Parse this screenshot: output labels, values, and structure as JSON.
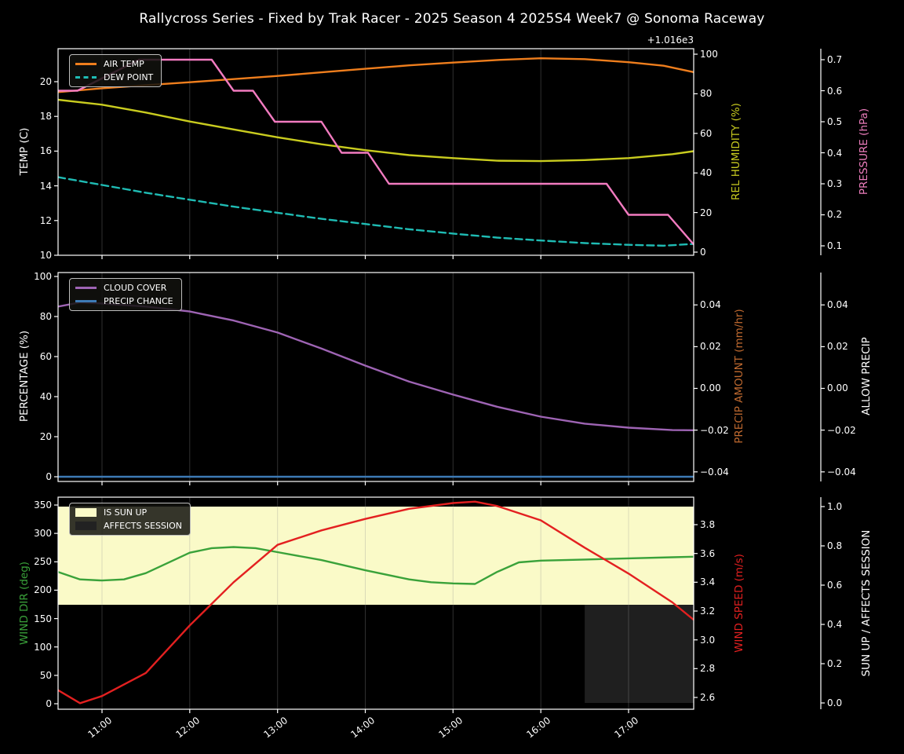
{
  "title": "Rallycross Series - Fixed by Trak Racer - 2025 Season 4 2025S4 Week7 @ Sonoma Raceway",
  "x_axis": {
    "tick_hours": [
      11,
      12,
      13,
      14,
      15,
      16,
      17
    ],
    "tick_labels": [
      "11:00",
      "12:00",
      "13:00",
      "14:00",
      "15:00",
      "16:00",
      "17:00"
    ],
    "range_hours": [
      10.5,
      17.74
    ]
  },
  "colors": {
    "background": "#000000",
    "frame": "#ffffff",
    "grid": "rgba(150,150,150,0.32)",
    "air_temp": "#ef7e1d",
    "dew_point": "#1fbcb4",
    "rel_humidity": "#c9cc1f",
    "pressure": "#f27bc0",
    "cloud_cover": "#9e64b4",
    "precip_chance": "#3d7ab5",
    "precip_amount_label": "#c06a30",
    "wind_dir": "#3aa23a",
    "wind_speed": "#e32020",
    "sun_up_fill": "#fafac8",
    "affects_session_fill": "#1f1f1f"
  },
  "chart_data": [
    {
      "type": "line",
      "panel": "temperature-humidity-pressure",
      "axes": {
        "left": {
          "label": "TEMP (C)",
          "color": "#ffffff",
          "tick_values": [
            10,
            12,
            14,
            16,
            18,
            20
          ],
          "tick_labels": [
            "10",
            "12",
            "14",
            "16",
            "18",
            "20"
          ]
        },
        "right1": {
          "label": "REL HUMIDITY (%)",
          "color": "#c9cc1f",
          "tick_values": [
            0,
            20,
            40,
            60,
            80,
            100
          ],
          "tick_labels": [
            "0",
            "20",
            "40",
            "60",
            "80",
            "100"
          ]
        },
        "right2": {
          "label": "PRESSURE (hPa)",
          "color": "#ee7ebe",
          "offset_text": "+1.016e3",
          "tick_values": [
            1016.1,
            1016.2,
            1016.3,
            1016.4,
            1016.5,
            1016.6,
            1016.7
          ],
          "tick_labels": [
            "0.1",
            "0.2",
            "0.3",
            "0.4",
            "0.5",
            "0.6",
            "0.7"
          ]
        }
      },
      "legend": [
        {
          "label": "AIR TEMP",
          "color": "#ef7e1d",
          "swatch": "line-solid"
        },
        {
          "label": "DEW POINT",
          "color": "#1fbcb4",
          "swatch": "line-dashed"
        }
      ],
      "series": [
        {
          "name": "AIR TEMP",
          "color": "#ef7e1d",
          "scale": "temp",
          "dash": null,
          "points": [
            [
              10.5,
              19.4
            ],
            [
              11,
              19.62
            ],
            [
              11.5,
              19.8
            ],
            [
              12,
              19.97
            ],
            [
              12.5,
              20.15
            ],
            [
              13,
              20.33
            ],
            [
              13.5,
              20.54
            ],
            [
              14,
              20.74
            ],
            [
              14.5,
              20.94
            ],
            [
              15,
              21.1
            ],
            [
              15.5,
              21.25
            ],
            [
              16,
              21.35
            ],
            [
              16.5,
              21.3
            ],
            [
              17,
              21.12
            ],
            [
              17.4,
              20.92
            ],
            [
              17.74,
              20.55
            ]
          ]
        },
        {
          "name": "DEW POINT",
          "color": "#1fbcb4",
          "scale": "temp",
          "dash": "9 5",
          "points": [
            [
              10.5,
              14.5
            ],
            [
              11,
              14.05
            ],
            [
              11.5,
              13.6
            ],
            [
              12,
              13.2
            ],
            [
              12.5,
              12.8
            ],
            [
              13,
              12.45
            ],
            [
              13.5,
              12.1
            ],
            [
              14,
              11.8
            ],
            [
              14.5,
              11.5
            ],
            [
              15,
              11.25
            ],
            [
              15.5,
              11.02
            ],
            [
              16,
              10.85
            ],
            [
              16.5,
              10.7
            ],
            [
              17,
              10.6
            ],
            [
              17.4,
              10.55
            ],
            [
              17.74,
              10.65
            ]
          ]
        },
        {
          "name": "REL HUMIDITY",
          "color": "#c9cc1f",
          "scale": "hum",
          "dash": null,
          "points": [
            [
              10.5,
              77
            ],
            [
              11,
              74.5
            ],
            [
              11.5,
              70.5
            ],
            [
              12,
              66
            ],
            [
              12.5,
              62
            ],
            [
              13,
              58
            ],
            [
              13.5,
              54.5
            ],
            [
              14,
              51.5
            ],
            [
              14.5,
              49
            ],
            [
              15,
              47.5
            ],
            [
              15.5,
              46.2
            ],
            [
              16,
              46
            ],
            [
              16.5,
              46.5
            ],
            [
              17,
              47.5
            ],
            [
              17.5,
              49.5
            ],
            [
              17.74,
              51
            ]
          ]
        },
        {
          "name": "PRESSURE",
          "color": "#f27bc0",
          "scale": "press",
          "dash": null,
          "points": [
            [
              10.5,
              1016.6
            ],
            [
              10.72,
              1016.6
            ],
            [
              11.42,
              1016.7
            ],
            [
              12.25,
              1016.7
            ],
            [
              12.5,
              1016.6
            ],
            [
              12.72,
              1016.6
            ],
            [
              12.97,
              1016.5
            ],
            [
              13.5,
              1016.5
            ],
            [
              13.73,
              1016.4
            ],
            [
              14.03,
              1016.4
            ],
            [
              14.27,
              1016.3
            ],
            [
              16.75,
              1016.3
            ],
            [
              17.0,
              1016.2
            ],
            [
              17.45,
              1016.2
            ],
            [
              17.74,
              1016.105
            ]
          ]
        }
      ]
    },
    {
      "type": "line",
      "panel": "cloud-precip",
      "axes": {
        "left": {
          "label": "PERCENTAGE (%)",
          "color": "#ffffff",
          "tick_values": [
            0,
            20,
            40,
            60,
            80,
            100
          ],
          "tick_labels": [
            "0",
            "20",
            "40",
            "60",
            "80",
            "100"
          ]
        },
        "right1": {
          "label": "PRECIP AMOUNT (mm/hr)",
          "color": "#c06a30",
          "tick_values": [
            0.04,
            0.02,
            0,
            -0.02,
            -0.04
          ],
          "tick_labels": [
            "0.04",
            "0.02",
            "0.00",
            "−0.02",
            "−0.04"
          ]
        },
        "right2": {
          "label": "ALLOW PRECIP",
          "color": "#ffffff",
          "tick_values": [
            0.04,
            0.02,
            0,
            -0.02,
            -0.04
          ],
          "tick_labels": [
            "0.04",
            "0.02",
            "0.00",
            "−0.02",
            "−0.04"
          ]
        }
      },
      "legend": [
        {
          "label": "CLOUD COVER",
          "color": "#9e64b4",
          "swatch": "line-solid"
        },
        {
          "label": "PRECIP CHANCE",
          "color": "#3d7ab5",
          "swatch": "line-solid"
        }
      ],
      "series": [
        {
          "name": "CLOUD COVER",
          "color": "#9e64b4",
          "scale": "pct",
          "dash": null,
          "points": [
            [
              10.5,
              85
            ],
            [
              10.75,
              87
            ],
            [
              11,
              86.5
            ],
            [
              11.5,
              85
            ],
            [
              12,
              82.5
            ],
            [
              12.5,
              78
            ],
            [
              13,
              72
            ],
            [
              13.5,
              64
            ],
            [
              14,
              55.5
            ],
            [
              14.5,
              47.5
            ],
            [
              15,
              41
            ],
            [
              15.5,
              35
            ],
            [
              16,
              30
            ],
            [
              16.5,
              26.5
            ],
            [
              17,
              24.5
            ],
            [
              17.5,
              23.3
            ],
            [
              17.74,
              23.2
            ]
          ]
        },
        {
          "name": "PRECIP CHANCE",
          "color": "#3d7ab5",
          "scale": "pct",
          "dash": null,
          "points": [
            [
              10.5,
              0
            ],
            [
              17.74,
              0
            ]
          ]
        }
      ]
    },
    {
      "type": "line",
      "panel": "wind-sun",
      "axes": {
        "left": {
          "label": "WIND DIR (deg)",
          "color": "#3aa23a",
          "tick_values": [
            0,
            50,
            100,
            150,
            200,
            250,
            300,
            350
          ],
          "tick_labels": [
            "0",
            "50",
            "100",
            "150",
            "200",
            "250",
            "300",
            "350"
          ]
        },
        "right1": {
          "label": "WIND SPEED (m/s)",
          "color": "#e32020",
          "tick_values": [
            2.6,
            2.8,
            3.0,
            3.2,
            3.4,
            3.6,
            3.8
          ],
          "tick_labels": [
            "2.6",
            "2.8",
            "3.0",
            "3.2",
            "3.4",
            "3.6",
            "3.8"
          ]
        },
        "right2": {
          "label": "SUN UP / AFFECTS SESSION",
          "color": "#ffffff",
          "tick_values": [
            0,
            0.2,
            0.4,
            0.6,
            0.8,
            1.0
          ],
          "tick_labels": [
            "0.0",
            "0.2",
            "0.4",
            "0.6",
            "0.8",
            "1.0"
          ]
        }
      },
      "legend": [
        {
          "label": "IS SUN UP",
          "color": "#fafac8",
          "swatch": "patch"
        },
        {
          "label": "AFFECTS SESSION",
          "color": "#222222",
          "swatch": "patch"
        }
      ],
      "bands": [
        {
          "name": "IS SUN UP",
          "color": "#fafac8",
          "scale": "sun",
          "x": [
            10.5,
            17.74
          ],
          "y": [
            0.5,
            1.0
          ]
        },
        {
          "name": "AFFECTS SESSION",
          "color": "#1f1f1f",
          "scale": "sun",
          "x": [
            16.5,
            17.74
          ],
          "y": [
            0.0,
            0.5
          ]
        }
      ],
      "series": [
        {
          "name": "WIND DIR",
          "color": "#3aa23a",
          "scale": "dir",
          "dash": null,
          "points": [
            [
              10.5,
              232
            ],
            [
              10.75,
              219
            ],
            [
              11,
              217
            ],
            [
              11.25,
              219
            ],
            [
              11.5,
              230
            ],
            [
              11.75,
              248
            ],
            [
              12,
              266
            ],
            [
              12.25,
              274
            ],
            [
              12.5,
              276
            ],
            [
              12.75,
              274
            ],
            [
              13,
              267
            ],
            [
              13.5,
              253
            ],
            [
              14,
              235
            ],
            [
              14.5,
              219
            ],
            [
              14.75,
              214
            ],
            [
              15,
              212
            ],
            [
              15.25,
              211
            ],
            [
              15.5,
              232
            ],
            [
              15.75,
              249
            ],
            [
              16,
              252
            ],
            [
              16.5,
              254
            ],
            [
              17,
              256
            ],
            [
              17.5,
              258
            ],
            [
              17.74,
              259
            ]
          ]
        },
        {
          "name": "WIND SPEED",
          "color": "#e32020",
          "scale": "spd",
          "dash": null,
          "points": [
            [
              10.5,
              2.65
            ],
            [
              10.75,
              2.56
            ],
            [
              11,
              2.61
            ],
            [
              11.5,
              2.77
            ],
            [
              12,
              3.1
            ],
            [
              12.5,
              3.4
            ],
            [
              13,
              3.66
            ],
            [
              13.5,
              3.76
            ],
            [
              14,
              3.84
            ],
            [
              14.5,
              3.91
            ],
            [
              15,
              3.95
            ],
            [
              15.25,
              3.96
            ],
            [
              15.5,
              3.93
            ],
            [
              16,
              3.83
            ],
            [
              16.5,
              3.64
            ],
            [
              17,
              3.46
            ],
            [
              17.5,
              3.26
            ],
            [
              17.74,
              3.14
            ]
          ]
        }
      ]
    }
  ]
}
